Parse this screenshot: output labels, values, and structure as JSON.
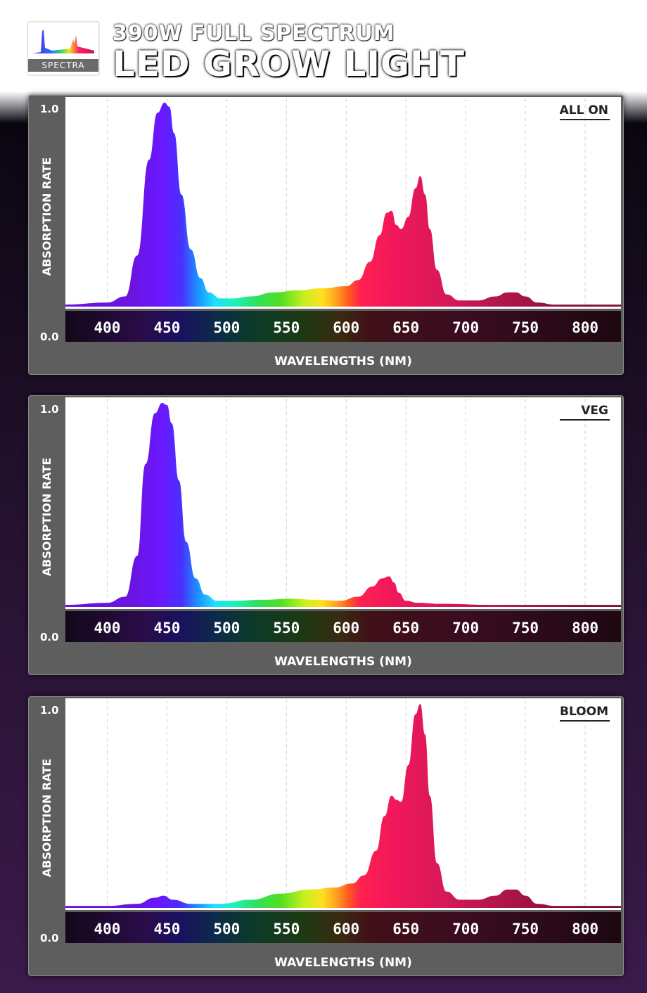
{
  "header": {
    "logo_text": "SPECTRA",
    "title_line1": "390W FULL SPECTRUM",
    "title_line2": "LED GROW LIGHT"
  },
  "colors": {
    "panel_bg": "#5e5e5e",
    "plot_bg": "#ffffff",
    "axis_bar": "#2a1424"
  },
  "chart_data": [
    {
      "type": "area",
      "title": "ALL ON",
      "xlabel": "WAVELENGTHS (NM)",
      "ylabel": "ABSORPTION RATE",
      "xlim": [
        365,
        830
      ],
      "ylim": [
        0,
        1
      ],
      "y_ticks": [
        "0.0",
        "1.0"
      ],
      "x_ticks": [
        400,
        450,
        500,
        550,
        600,
        650,
        700,
        750,
        800
      ],
      "grid": "vertical dashed",
      "series": [
        {
          "name": "ALL ON",
          "x": [
            365,
            400,
            415,
            425,
            435,
            442,
            448,
            452,
            456,
            462,
            470,
            478,
            485,
            495,
            505,
            520,
            540,
            560,
            580,
            600,
            610,
            620,
            628,
            634,
            638,
            642,
            646,
            652,
            658,
            662,
            666,
            670,
            676,
            684,
            695,
            710,
            725,
            735,
            742,
            750,
            760,
            775,
            800,
            830
          ],
          "y": [
            0.01,
            0.02,
            0.05,
            0.25,
            0.72,
            0.95,
            1.0,
            0.98,
            0.85,
            0.55,
            0.28,
            0.14,
            0.07,
            0.04,
            0.04,
            0.05,
            0.07,
            0.08,
            0.09,
            0.1,
            0.13,
            0.22,
            0.35,
            0.46,
            0.47,
            0.4,
            0.38,
            0.44,
            0.58,
            0.64,
            0.55,
            0.38,
            0.18,
            0.06,
            0.03,
            0.03,
            0.05,
            0.07,
            0.07,
            0.05,
            0.02,
            0.01,
            0.01,
            0.01
          ]
        }
      ]
    },
    {
      "type": "area",
      "title": "VEG",
      "xlabel": "WAVELENGTHS (NM)",
      "ylabel": "ABSORPTION RATE",
      "xlim": [
        365,
        830
      ],
      "ylim": [
        0,
        1
      ],
      "y_ticks": [
        "0.0",
        "1.0"
      ],
      "x_ticks": [
        400,
        450,
        500,
        550,
        600,
        650,
        700,
        750,
        800
      ],
      "grid": "vertical dashed",
      "series": [
        {
          "name": "VEG",
          "x": [
            365,
            400,
            415,
            425,
            432,
            440,
            446,
            450,
            454,
            460,
            466,
            474,
            482,
            492,
            505,
            530,
            555,
            575,
            595,
            610,
            622,
            630,
            636,
            640,
            644,
            650,
            660,
            680,
            720,
            760,
            800,
            830
          ],
          "y": [
            0.01,
            0.02,
            0.05,
            0.25,
            0.7,
            0.95,
            1.0,
            0.99,
            0.9,
            0.62,
            0.32,
            0.14,
            0.06,
            0.03,
            0.03,
            0.035,
            0.04,
            0.035,
            0.03,
            0.05,
            0.1,
            0.14,
            0.15,
            0.12,
            0.07,
            0.03,
            0.02,
            0.015,
            0.01,
            0.01,
            0.01,
            0.01
          ]
        }
      ]
    },
    {
      "type": "area",
      "title": "BLOOM",
      "xlabel": "WAVELENGTHS (NM)",
      "ylabel": "ABSORPTION RATE",
      "xlim": [
        365,
        830
      ],
      "ylim": [
        0,
        1
      ],
      "y_ticks": [
        "0.0",
        "1.0"
      ],
      "x_ticks": [
        400,
        450,
        500,
        550,
        600,
        650,
        700,
        750,
        800
      ],
      "grid": "vertical dashed",
      "series": [
        {
          "name": "BLOOM",
          "x": [
            365,
            400,
            425,
            440,
            447,
            455,
            470,
            495,
            520,
            545,
            570,
            590,
            605,
            615,
            625,
            632,
            638,
            642,
            646,
            652,
            658,
            662,
            666,
            670,
            676,
            684,
            695,
            710,
            725,
            735,
            742,
            750,
            760,
            775,
            800,
            830
          ],
          "y": [
            0.01,
            0.01,
            0.02,
            0.05,
            0.06,
            0.04,
            0.02,
            0.02,
            0.04,
            0.07,
            0.09,
            0.1,
            0.12,
            0.16,
            0.28,
            0.45,
            0.55,
            0.53,
            0.52,
            0.7,
            0.95,
            1.0,
            0.85,
            0.55,
            0.22,
            0.08,
            0.04,
            0.04,
            0.06,
            0.09,
            0.09,
            0.06,
            0.02,
            0.01,
            0.01,
            0.01
          ]
        }
      ]
    }
  ]
}
